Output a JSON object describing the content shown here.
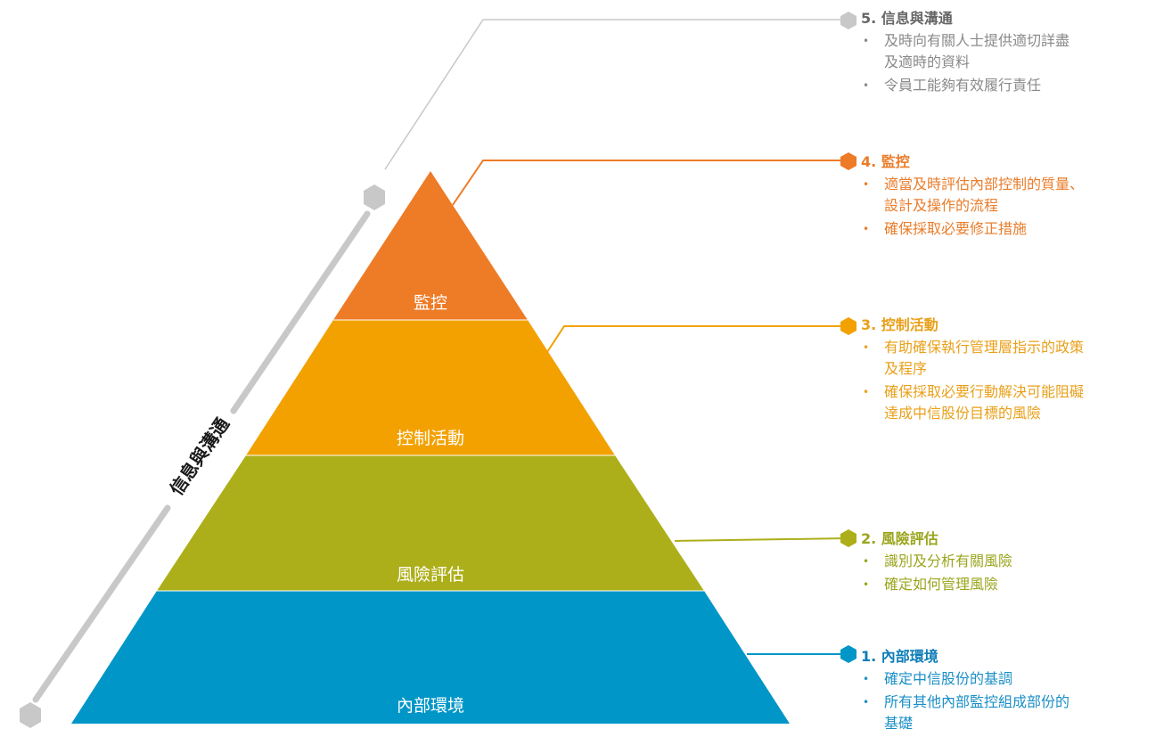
{
  "axis_label": "信息與溝通",
  "colors": {
    "tier1": "#0096c8",
    "tier2": "#adaf1a",
    "tier3": "#f3a100",
    "tier4": "#ee7b26",
    "tier5": "#c8c8c8"
  },
  "tiers": [
    {
      "label": "內部環境"
    },
    {
      "label": "風險評估"
    },
    {
      "label": "控制活動"
    },
    {
      "label": "監控"
    }
  ],
  "descriptions": [
    {
      "title": "1. 內部環境",
      "items": [
        "確定中信股份的基調",
        "所有其他內部監控組成部份的\n基礎"
      ]
    },
    {
      "title": "2. 風險評估",
      "items": [
        "識別及分析有關風險",
        "確定如何管理風險"
      ]
    },
    {
      "title": "3. 控制活動",
      "items": [
        "有助確保執行管理層指示的政策\n及程序",
        "確保採取必要行動解決可能阻礙\n達成中信股份目標的風險"
      ]
    },
    {
      "title": "4. 監控",
      "items": [
        "適當及時評估內部控制的質量、\n設計及操作的流程",
        "確保採取必要修正措施"
      ]
    },
    {
      "title": "5. 信息與溝通",
      "items": [
        "及時向有關人士提供適切詳盡\n及適時的資料",
        "令員工能夠有效履行責任"
      ]
    }
  ]
}
